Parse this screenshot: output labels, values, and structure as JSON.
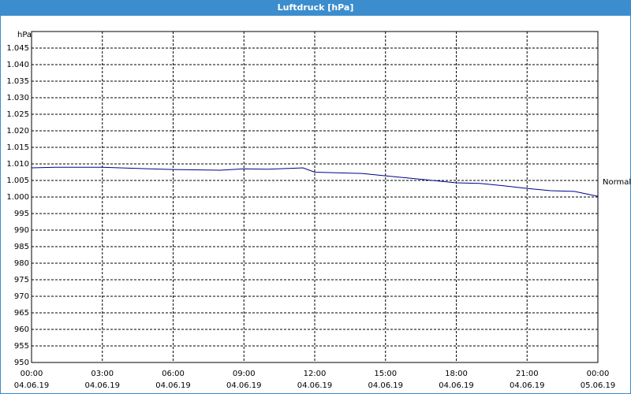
{
  "chart_data": {
    "type": "line",
    "title": "Luftdruck [hPa]",
    "y_unit": "hPa",
    "x": [
      0,
      1,
      3,
      5,
      6,
      8,
      9,
      10,
      11.5,
      12,
      14,
      15,
      16,
      17,
      18,
      19,
      20,
      21,
      22,
      23,
      24
    ],
    "series": [
      {
        "name": "Normal",
        "color": "#00008b",
        "values": [
          1008.8,
          1009,
          1009,
          1008.5,
          1008.3,
          1008.1,
          1008.5,
          1008.4,
          1008.8,
          1007.5,
          1007.1,
          1006.4,
          1005.7,
          1005,
          1004.3,
          1004.1,
          1003.4,
          1002.6,
          1001.9,
          1001.7,
          1000.2
        ]
      }
    ],
    "xlim": [
      0,
      24
    ],
    "xticks": [
      {
        "value": 0,
        "label": "00:00"
      },
      {
        "value": 3,
        "label": "03:00"
      },
      {
        "value": 6,
        "label": "06:00"
      },
      {
        "value": 9,
        "label": "09:00"
      },
      {
        "value": 12,
        "label": "12:00"
      },
      {
        "value": 15,
        "label": "15:00"
      },
      {
        "value": 18,
        "label": "18:00"
      },
      {
        "value": 21,
        "label": "21:00"
      },
      {
        "value": 24,
        "label": "00:00"
      }
    ],
    "xtick_dates": [
      "04.06.19",
      "04.06.19",
      "04.06.19",
      "04.06.19",
      "04.06.19",
      "04.06.19",
      "04.06.19",
      "04.06.19",
      "05.06.19"
    ],
    "ylim": [
      950,
      1050
    ],
    "yticks": [
      950,
      955,
      960,
      965,
      970,
      975,
      980,
      985,
      990,
      995,
      {
        "value": 1000,
        "label": "1.000"
      },
      {
        "value": 1005,
        "label": "1.005"
      },
      {
        "value": 1010,
        "label": "1.010"
      },
      {
        "value": 1015,
        "label": "1.015"
      },
      {
        "value": 1020,
        "label": "1.020"
      },
      {
        "value": 1025,
        "label": "1.025"
      },
      {
        "value": 1030,
        "label": "1.030"
      },
      {
        "value": 1035,
        "label": "1.035"
      },
      {
        "value": 1040,
        "label": "1.040"
      },
      {
        "value": 1045,
        "label": "1.045"
      }
    ],
    "grid": true
  }
}
